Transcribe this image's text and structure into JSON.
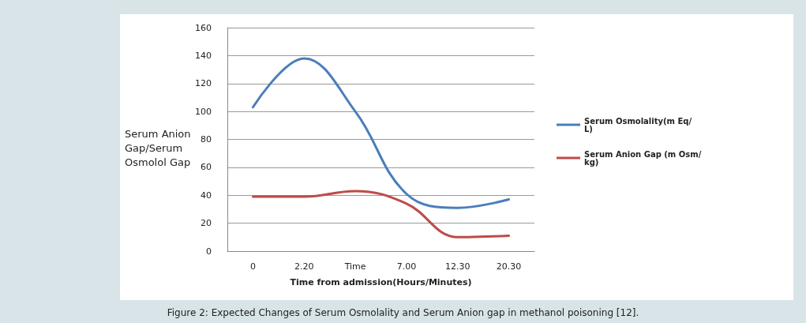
{
  "chart_data": {
    "type": "line",
    "xlabel": "Time from admission(Hours/Minutes)",
    "ylabel": "Serum Anion Gap/Serum Osmolol Gap",
    "categories": [
      "0",
      "2.20",
      "Time",
      "7.00",
      "12.30",
      "20.30"
    ],
    "series": [
      {
        "name": "Serum Osmolality(m Eq/L)",
        "color": "#4a7ebb",
        "values": [
          103,
          138,
          100,
          41,
          31,
          37
        ]
      },
      {
        "name": "Serum Anion Gap (m Osm/kg)",
        "color": "#be4b48",
        "values": [
          39,
          39,
          43,
          34,
          10,
          11
        ]
      }
    ],
    "ylim": [
      0,
      160
    ],
    "yticks": [
      0,
      20,
      40,
      60,
      80,
      100,
      120,
      140,
      160
    ],
    "grid": "y",
    "legend": "right",
    "marker": "none",
    "line_style": "solid",
    "annotations": [
      "Figure 2: Expected Changes of Serum Osmolality and Serum Anion gap in methanol poisoning [12]."
    ]
  }
}
